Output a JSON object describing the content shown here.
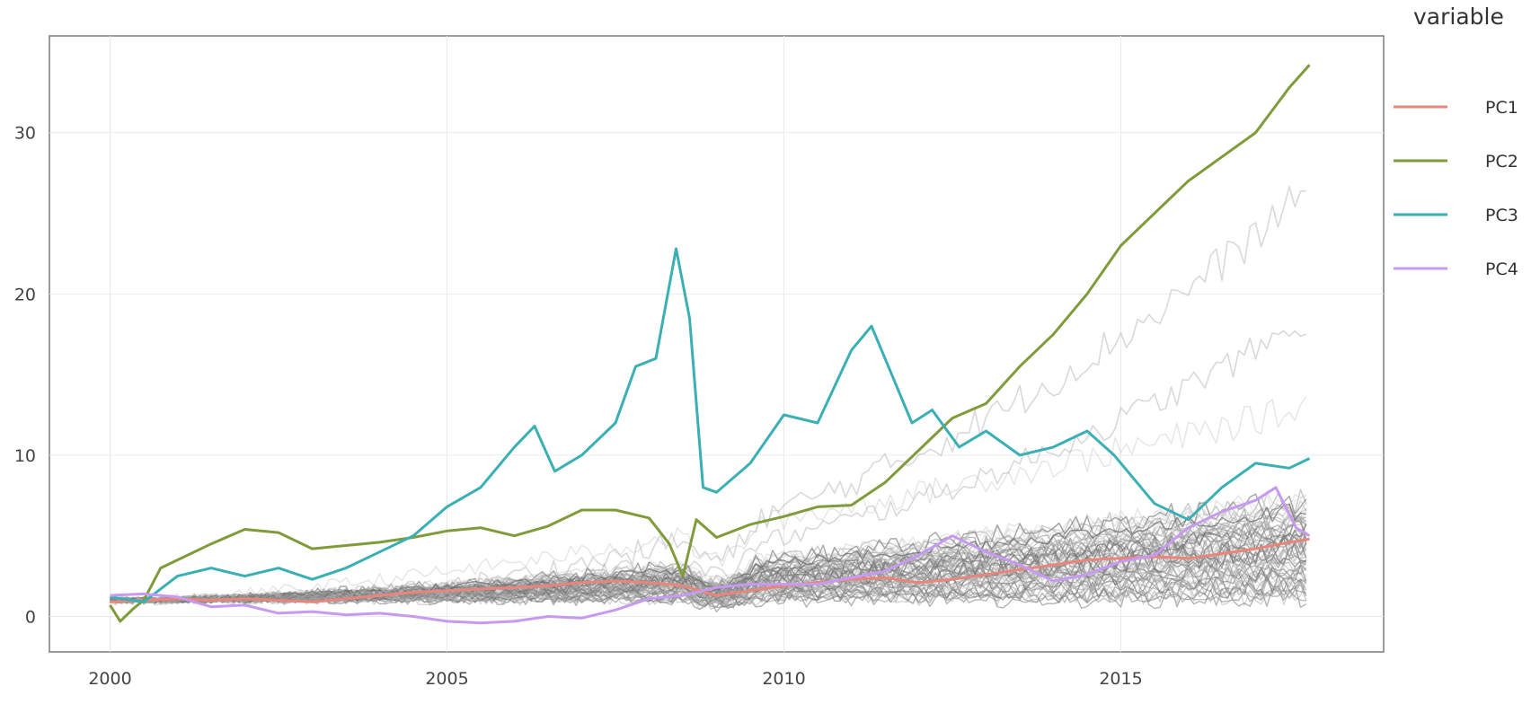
{
  "chart_data": {
    "type": "line",
    "title": "",
    "xlabel": "",
    "ylabel": "",
    "xlim": [
      1999.1,
      2018.9
    ],
    "ylim": [
      -2.2,
      36
    ],
    "grid": true,
    "legend_position": "right",
    "x_ticks": [
      {
        "value": 2000,
        "label": "2000"
      },
      {
        "value": 2005,
        "label": "2005"
      },
      {
        "value": 2010,
        "label": "2010"
      },
      {
        "value": 2015,
        "label": "2015"
      }
    ],
    "y_ticks": [
      {
        "value": 0,
        "label": "0"
      },
      {
        "value": 10,
        "label": "10"
      },
      {
        "value": 20,
        "label": "20"
      },
      {
        "value": 30,
        "label": "30"
      }
    ],
    "legend": {
      "title": "variable",
      "entries": [
        "PC1",
        "PC2",
        "PC3",
        "PC4"
      ]
    },
    "series": [
      {
        "name": "PC1",
        "color": "#e8867c",
        "x": [
          2000,
          2000.5,
          2001,
          2001.5,
          2002,
          2002.5,
          2003,
          2003.5,
          2004,
          2004.5,
          2005,
          2005.5,
          2006,
          2006.5,
          2007,
          2007.5,
          2008,
          2008.5,
          2009,
          2009.5,
          2010,
          2010.5,
          2011,
          2011.5,
          2012,
          2012.5,
          2013,
          2013.5,
          2014,
          2014.5,
          2015,
          2015.5,
          2016,
          2016.5,
          2017,
          2017.5,
          2017.8
        ],
        "y": [
          0.9,
          1.0,
          1.1,
          1.0,
          1.1,
          1.0,
          0.9,
          1.1,
          1.3,
          1.5,
          1.6,
          1.7,
          1.8,
          1.9,
          2.1,
          2.2,
          2.1,
          1.9,
          1.3,
          1.6,
          1.9,
          2.1,
          2.3,
          2.4,
          2.1,
          2.3,
          2.6,
          2.9,
          3.2,
          3.5,
          3.6,
          3.7,
          3.6,
          3.9,
          4.2,
          4.6,
          4.8
        ]
      },
      {
        "name": "PC2",
        "color": "#7f9b3a",
        "x": [
          2000,
          2000.15,
          2000.35,
          2000.5,
          2000.75,
          2001,
          2001.5,
          2002,
          2002.5,
          2003,
          2003.5,
          2004,
          2004.5,
          2005,
          2005.5,
          2006,
          2006.5,
          2007,
          2007.5,
          2008,
          2008.3,
          2008.5,
          2008.7,
          2009,
          2009.5,
          2010,
          2010.5,
          2011,
          2011.5,
          2012,
          2012.5,
          2013,
          2013.5,
          2014,
          2014.5,
          2015,
          2015.5,
          2016,
          2016.5,
          2017,
          2017.5,
          2017.8
        ],
        "y": [
          0.7,
          -0.3,
          0.5,
          1.0,
          3.0,
          3.5,
          4.5,
          5.4,
          5.2,
          4.2,
          4.4,
          4.6,
          4.9,
          5.3,
          5.5,
          5.0,
          5.6,
          6.6,
          6.6,
          6.1,
          4.5,
          2.5,
          6.0,
          4.9,
          5.7,
          6.2,
          6.8,
          6.9,
          8.3,
          10.3,
          12.3,
          13.2,
          15.5,
          17.5,
          20.0,
          23.0,
          25.0,
          27.0,
          28.5,
          30.0,
          32.8,
          34.2
        ]
      },
      {
        "name": "PC3",
        "color": "#3ab0b4",
        "x": [
          2000,
          2000.5,
          2001,
          2001.5,
          2002,
          2002.5,
          2003,
          2003.5,
          2004,
          2004.5,
          2005,
          2005.5,
          2006,
          2006.3,
          2006.6,
          2007,
          2007.5,
          2007.8,
          2008.1,
          2008.4,
          2008.6,
          2008.8,
          2009,
          2009.5,
          2010,
          2010.5,
          2011,
          2011.3,
          2011.6,
          2011.9,
          2012.2,
          2012.6,
          2013,
          2013.5,
          2014,
          2014.5,
          2014.9,
          2015.2,
          2015.5,
          2016,
          2016.5,
          2017,
          2017.5,
          2017.8
        ],
        "y": [
          1.2,
          0.9,
          2.5,
          3.0,
          2.5,
          3.0,
          2.3,
          3.0,
          4.0,
          5.0,
          6.8,
          8.0,
          10.5,
          11.8,
          9.0,
          10.0,
          12.0,
          15.5,
          16.0,
          22.8,
          18.5,
          8.0,
          7.7,
          9.5,
          12.5,
          12.0,
          16.5,
          18.0,
          15.0,
          12.0,
          12.8,
          10.5,
          11.5,
          10.0,
          10.5,
          11.5,
          10.0,
          8.5,
          7.0,
          6.0,
          8.0,
          9.5,
          9.2,
          9.8
        ]
      },
      {
        "name": "PC4",
        "color": "#c79af0",
        "x": [
          2000,
          2000.5,
          2001,
          2001.5,
          2002,
          2002.5,
          2003,
          2003.5,
          2004,
          2004.5,
          2005,
          2005.5,
          2006,
          2006.5,
          2007,
          2007.5,
          2008,
          2008.5,
          2009,
          2009.5,
          2010,
          2010.5,
          2011,
          2011.5,
          2012,
          2012.5,
          2013,
          2013.5,
          2014,
          2014.5,
          2015,
          2015.5,
          2016,
          2016.5,
          2017,
          2017.3,
          2017.6,
          2017.8
        ],
        "y": [
          1.3,
          1.4,
          1.2,
          0.6,
          0.7,
          0.2,
          0.3,
          0.1,
          0.2,
          0.0,
          -0.3,
          -0.4,
          -0.3,
          0.0,
          -0.1,
          0.4,
          1.1,
          1.3,
          1.8,
          2.0,
          2.0,
          2.0,
          2.4,
          2.8,
          3.8,
          5.0,
          4.0,
          3.2,
          2.2,
          2.6,
          3.4,
          3.8,
          5.5,
          6.5,
          7.2,
          8.0,
          5.5,
          5.0
        ]
      }
    ]
  }
}
